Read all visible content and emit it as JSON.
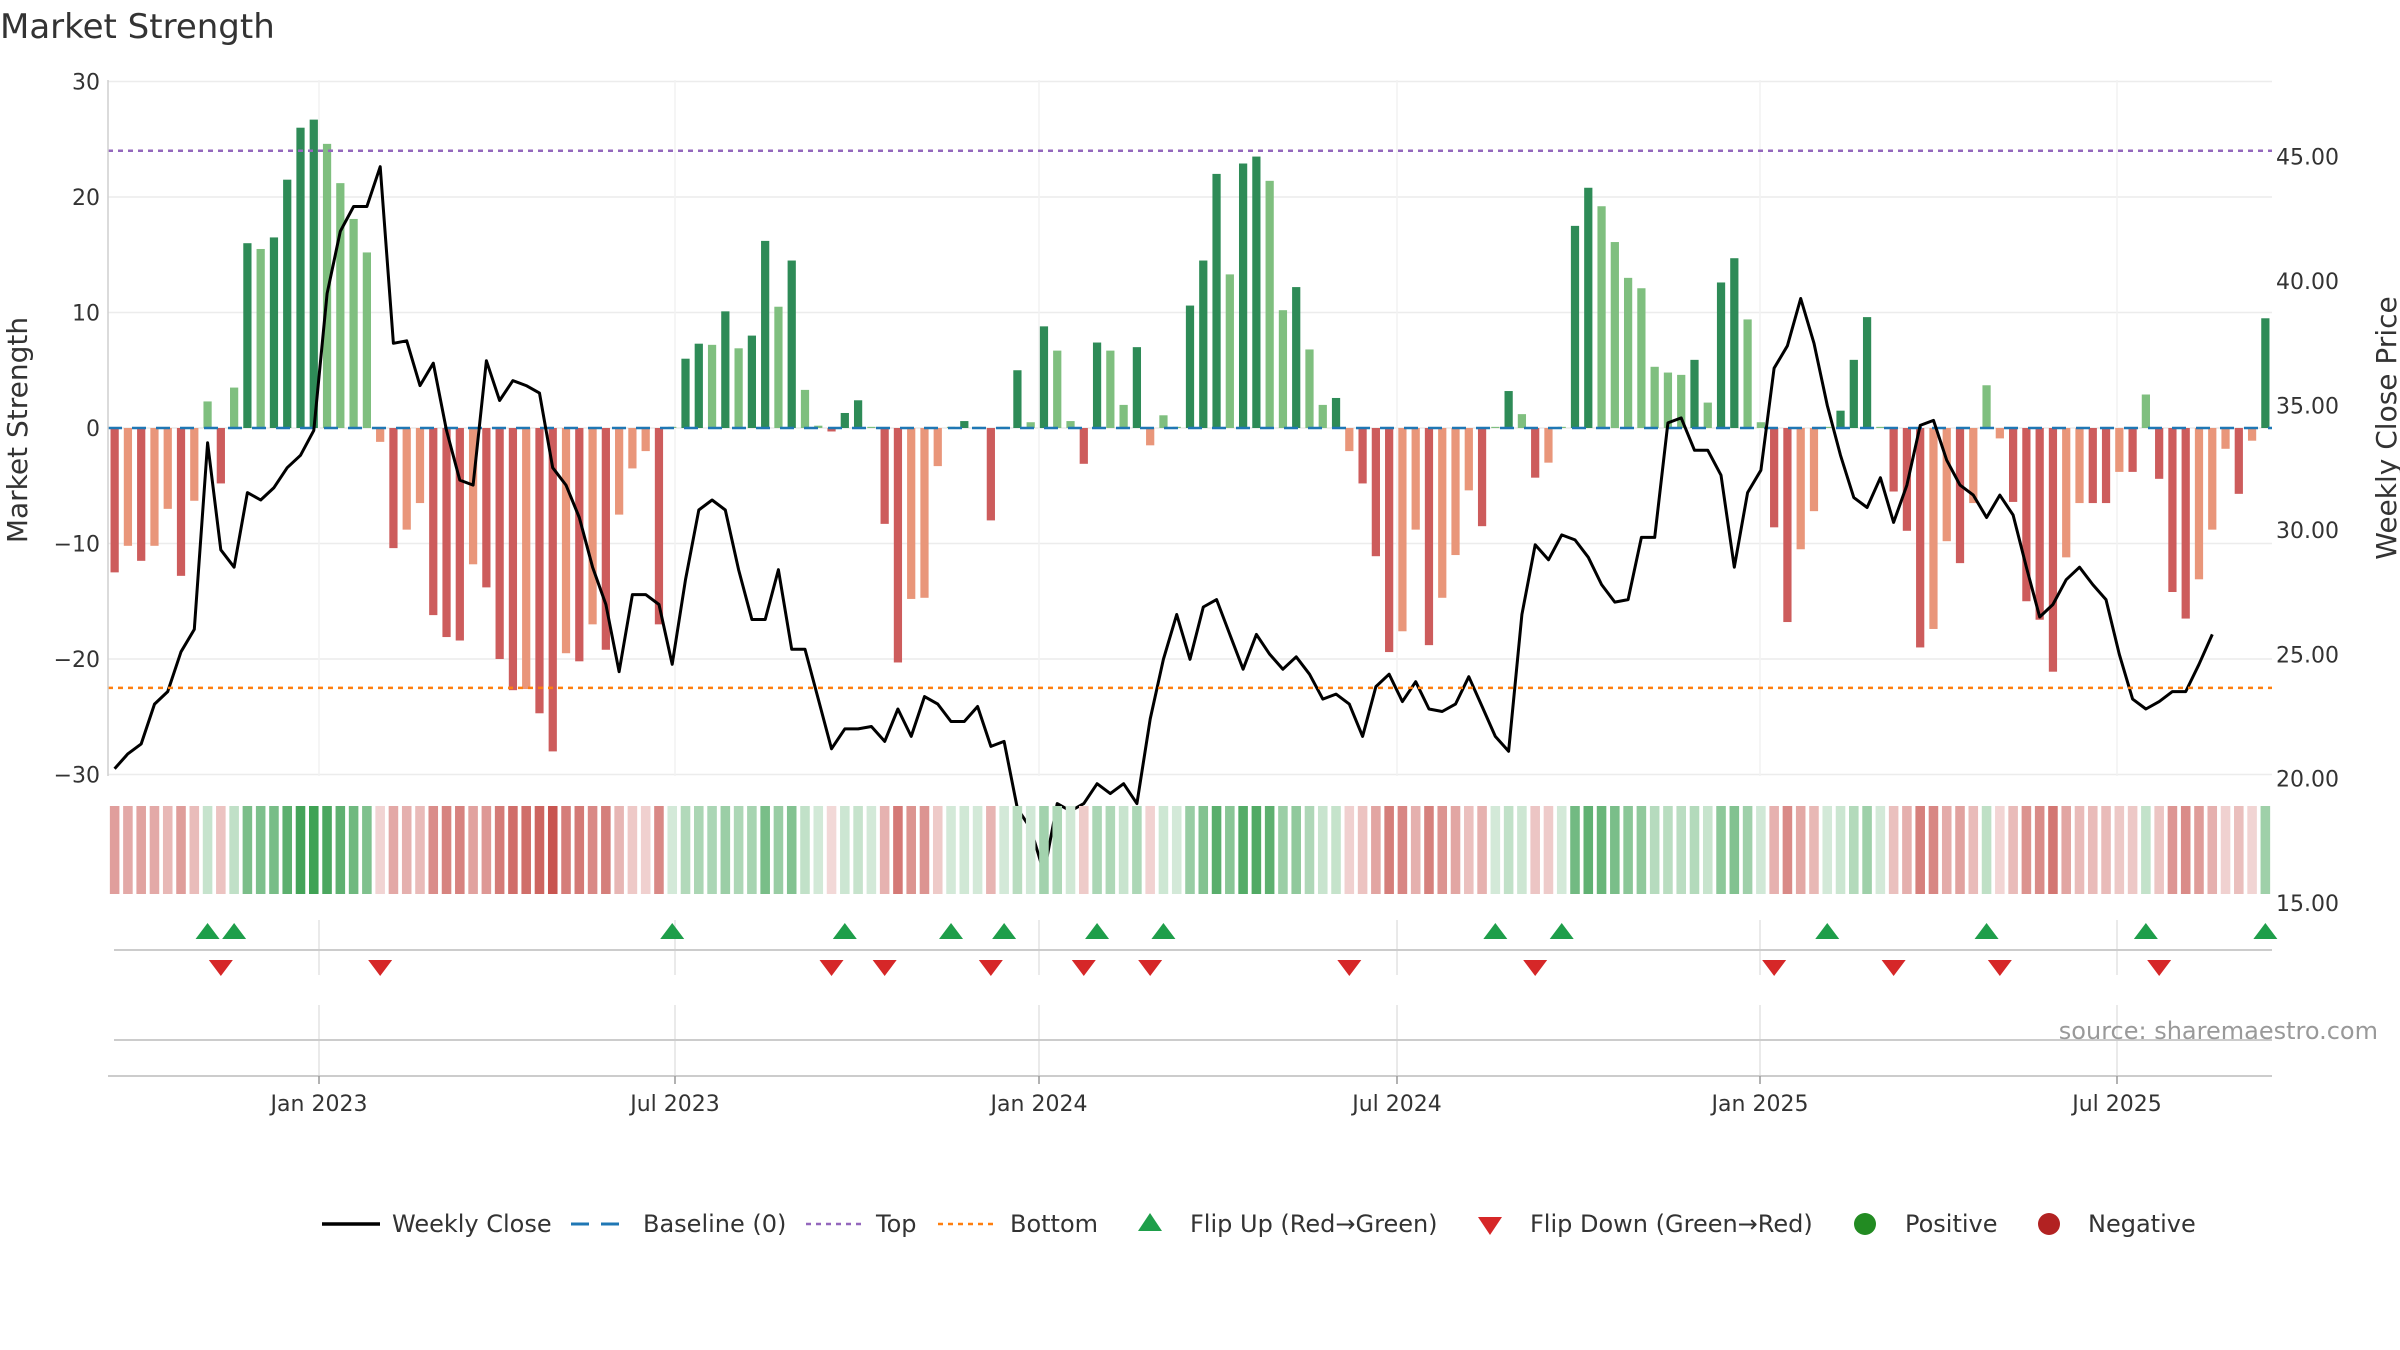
{
  "chart_data": {
    "type": "bar",
    "title": "Market Strength",
    "ylabel": "Market Strength",
    "y2label": "Weekly Close Price",
    "ylim": [
      -30,
      30
    ],
    "y2lim": [
      15,
      45
    ],
    "yticks": [
      "30",
      "20",
      "10",
      "0",
      "−10",
      "−20",
      "−30"
    ],
    "y2ticks": [
      "45.00",
      "40.00",
      "35.00",
      "30.00",
      "25.00",
      "20.00",
      "15.00"
    ],
    "xticks": [
      "Jan 2023",
      "Jul 2023",
      "Jan 2024",
      "Jul 2024",
      "Jan 2025",
      "Jul 2025"
    ],
    "top_line": 24,
    "bottom_line": -22.5,
    "source": "source: sharemaestro.com",
    "grid": true,
    "legend_position": "bottom",
    "colors": {
      "pos_strong": "#2e8b57",
      "pos_weak": "#7fbf7f",
      "neg_strong": "#cd5c5c",
      "neg_weak": "#e9967a",
      "close": "#000000",
      "baseline": "#1f77b4",
      "top": "#9467bd",
      "bottom": "#ff7f0e",
      "flip_up": "#1e9e4a",
      "flip_down": "#d62728",
      "positive": "#228b22",
      "negative": "#b22222"
    },
    "legend": [
      {
        "key": "close",
        "label": "Weekly Close"
      },
      {
        "key": "baseline",
        "label": "Baseline (0)"
      },
      {
        "key": "top",
        "label": "Top"
      },
      {
        "key": "bottom",
        "label": "Bottom"
      },
      {
        "key": "flip_up",
        "label": "Flip Up (Red→Green)"
      },
      {
        "key": "flip_down",
        "label": "Flip Down (Green→Red)"
      },
      {
        "key": "positive",
        "label": "Positive"
      },
      {
        "key": "negative",
        "label": "Negative"
      }
    ],
    "strength": [
      -12.5,
      -10.2,
      -11.5,
      -10.2,
      -7,
      -12.8,
      -6.3,
      2.3,
      -4.8,
      3.5,
      16,
      15.5,
      16.5,
      21.5,
      26,
      26.7,
      24.6,
      21.2,
      18.1,
      15.2,
      -1.2,
      -10.4,
      -8.8,
      -6.5,
      -16.2,
      -18.1,
      -18.4,
      -11.8,
      -13.8,
      -20,
      -22.7,
      -22.6,
      -24.7,
      -28,
      -19.5,
      -20.2,
      -17,
      -19.2,
      -7.5,
      -3.5,
      -2,
      -17,
      0.1,
      6,
      7.3,
      7.2,
      10.1,
      6.9,
      8,
      16.2,
      10.5,
      14.5,
      3.3,
      0.2,
      -0.3,
      1.3,
      2.4,
      0.1,
      -8.3,
      -20.3,
      -14.8,
      -14.7,
      -3.3,
      0.1,
      0.6,
      0.1,
      -8,
      0.1,
      5,
      0.5,
      8.8,
      6.7,
      0.6,
      -3.1,
      7.4,
      6.7,
      2,
      7,
      -1.5,
      1.1,
      0.1,
      10.6,
      14.5,
      22,
      13.3,
      22.9,
      23.5,
      21.4,
      10.2,
      12.2,
      6.8,
      2,
      2.6,
      -2,
      -4.8,
      -11.1,
      -19.4,
      -17.6,
      -8.8,
      -18.8,
      -14.7,
      -11,
      -5.4,
      -8.5,
      0.1,
      3.2,
      1.2,
      -4.3,
      -3,
      0.1,
      17.5,
      20.8,
      19.2,
      16.1,
      13,
      12.1,
      5.3,
      4.8,
      4.6,
      5.9,
      2.2,
      12.6,
      14.7,
      9.4,
      0.5,
      -8.6,
      -16.8,
      -10.5,
      -7.2,
      0.1,
      1.5,
      5.9,
      9.6,
      0.1,
      -5.5,
      -8.9,
      -19,
      -17.4,
      -9.8,
      -11.7,
      -6.5,
      3.7,
      -0.9,
      -6.4,
      -15,
      -16.6,
      -21.1,
      -11.2,
      -6.5,
      -6.5,
      -6.5,
      -3.8,
      -3.8,
      2.9,
      -4.4,
      -14.2,
      -16.5,
      -13.1,
      -8.8,
      -1.8,
      -5.7,
      -1.1,
      9.5
    ],
    "close": [
      20.4,
      21,
      21.4,
      23,
      23.5,
      25.1,
      26,
      33.5,
      29.2,
      28.5,
      31.5,
      31.2,
      31.7,
      32.5,
      33,
      34,
      39.5,
      42,
      43,
      43,
      44.6,
      37.5,
      37.6,
      35.8,
      36.7,
      34,
      32,
      31.8,
      36.8,
      35.2,
      36,
      35.8,
      35.5,
      32.5,
      31.8,
      30.5,
      28.5,
      27,
      24.3,
      27.4,
      27.4,
      27,
      24.6,
      28,
      30.8,
      31.2,
      30.8,
      28.4,
      26.4,
      26.4,
      28.4,
      25.2,
      25.2,
      23.2,
      21.2,
      22,
      22,
      22.1,
      21.5,
      22.8,
      21.7,
      23.3,
      23,
      22.3,
      22.3,
      22.9,
      21.3,
      21.5,
      18.8,
      18,
      16.2,
      19,
      18.7,
      19,
      19.8,
      19.4,
      19.8,
      19,
      22.4,
      24.8,
      26.6,
      24.8,
      26.9,
      27.2,
      25.8,
      24.4,
      25.8,
      25,
      24.4,
      24.9,
      24.2,
      23.2,
      23.4,
      23,
      21.7,
      23.7,
      24.2,
      23.1,
      23.9,
      22.8,
      22.7,
      23,
      24.1,
      22.9,
      21.7,
      21.1,
      26.6,
      29.4,
      28.8,
      29.8,
      29.6,
      28.9,
      27.8,
      27.1,
      27.2,
      29.7,
      29.7,
      34.3,
      34.5,
      33.2,
      33.2,
      32.2,
      28.5,
      31.5,
      32.4,
      36.5,
      37.4,
      39.3,
      37.5,
      35,
      33,
      31.3,
      30.9,
      32.1,
      30.3,
      31.8,
      34.2,
      34.4,
      32.8,
      31.8,
      31.4,
      30.5,
      31.4,
      30.6,
      28.5,
      26.5,
      27,
      28,
      28.5,
      27.8,
      27.2,
      25,
      23.2,
      22.8,
      23.1,
      23.5,
      23.5,
      24.6,
      25.8
    ]
  }
}
